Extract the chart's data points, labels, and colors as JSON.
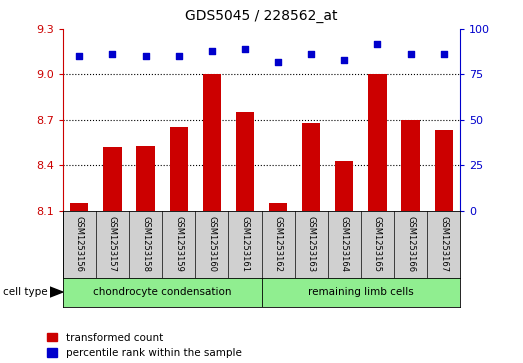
{
  "title": "GDS5045 / 228562_at",
  "samples": [
    "GSM1253156",
    "GSM1253157",
    "GSM1253158",
    "GSM1253159",
    "GSM1253160",
    "GSM1253161",
    "GSM1253162",
    "GSM1253163",
    "GSM1253164",
    "GSM1253165",
    "GSM1253166",
    "GSM1253167"
  ],
  "transformed_count": [
    8.15,
    8.52,
    8.53,
    8.65,
    9.0,
    8.75,
    8.15,
    8.68,
    8.43,
    9.0,
    8.7,
    8.63
  ],
  "percentile_rank": [
    85,
    86,
    85,
    85,
    88,
    89,
    82,
    86,
    83,
    92,
    86,
    86
  ],
  "ylim_left": [
    8.1,
    9.3
  ],
  "ylim_right": [
    0,
    100
  ],
  "yticks_left": [
    8.1,
    8.4,
    8.7,
    9.0,
    9.3
  ],
  "yticks_right": [
    0,
    25,
    50,
    75,
    100
  ],
  "grid_yticks": [
    8.4,
    8.7,
    9.0
  ],
  "bar_color": "#cc0000",
  "dot_color": "#0000cc",
  "background_color": "#ffffff",
  "left_tick_color": "#cc0000",
  "right_tick_color": "#0000cc",
  "bar_width": 0.55,
  "cell_type_groups": [
    {
      "label": "chondrocyte condensation",
      "start": 0,
      "end": 6
    },
    {
      "label": "remaining limb cells",
      "start": 6,
      "end": 12
    }
  ],
  "cell_type_color": "#90ee90",
  "gray_color": "#d0d0d0"
}
